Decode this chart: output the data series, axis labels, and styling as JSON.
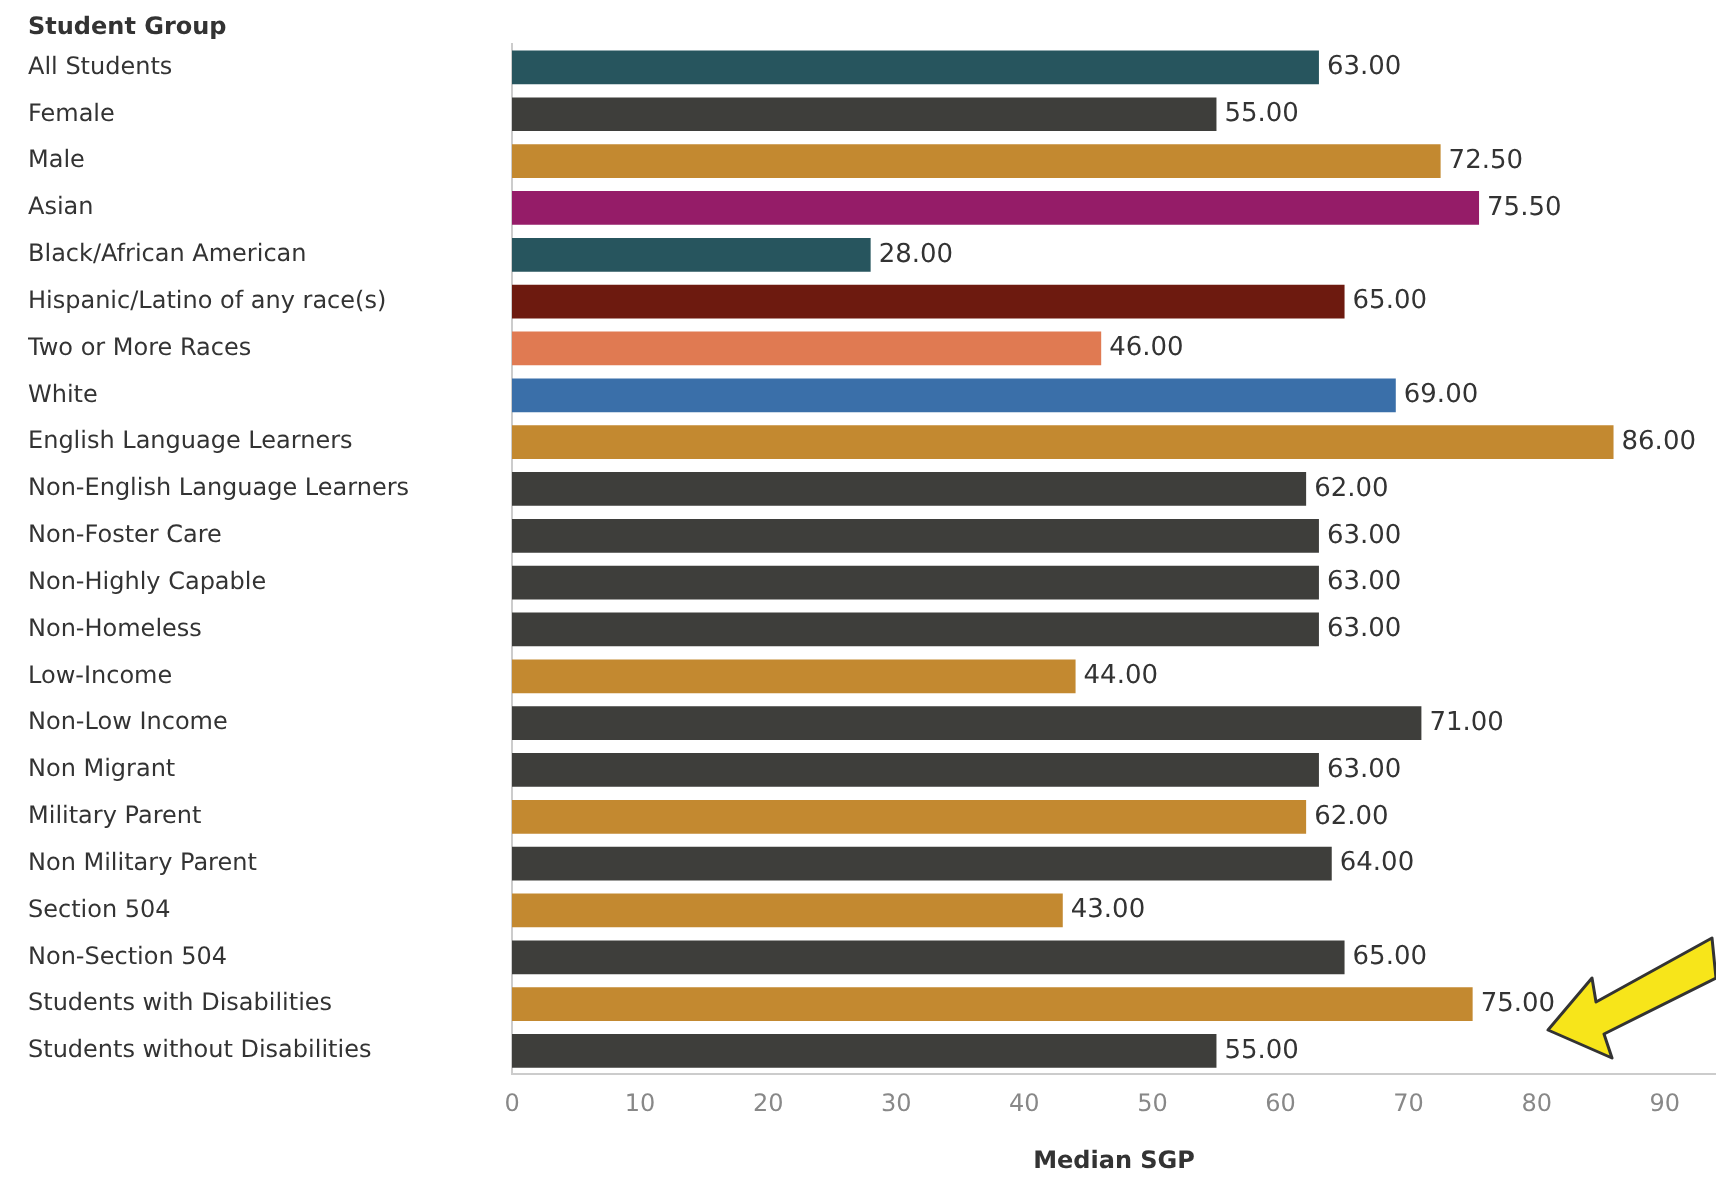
{
  "chart_data": {
    "type": "bar",
    "orientation": "horizontal",
    "ylabel": "Student Group",
    "xlabel": "Median SGP",
    "categories": [
      "All Students",
      "Female",
      "Male",
      "Asian",
      "Black/African American",
      "Hispanic/Latino of any race(s)",
      "Two or More Races",
      "White",
      "English Language Learners",
      "Non-English Language Learners",
      "Non-Foster Care",
      "Non-Highly Capable",
      "Non-Homeless",
      "Low-Income",
      "Non-Low Income",
      "Non Migrant",
      "Military Parent",
      "Non Military Parent",
      "Section 504",
      "Non-Section 504",
      "Students with Disabilities",
      "Students without Disabilities"
    ],
    "values": [
      63,
      55,
      72.5,
      75.5,
      28,
      65,
      46,
      69,
      86,
      62,
      63,
      63,
      63,
      44,
      71,
      63,
      62,
      64,
      43,
      65,
      75,
      55
    ],
    "value_labels": [
      "63.00",
      "55.00",
      "72.50",
      "75.50",
      "28.00",
      "65.00",
      "46.00",
      "69.00",
      "86.00",
      "62.00",
      "63.00",
      "63.00",
      "63.00",
      "44.00",
      "71.00",
      "63.00",
      "62.00",
      "64.00",
      "43.00",
      "65.00",
      "75.00",
      "55.00"
    ],
    "colors": [
      "#27555e",
      "#3e3e3b",
      "#c38930",
      "#951c68",
      "#27555e",
      "#6d1a0f",
      "#e07a52",
      "#3a6fa9",
      "#c38930",
      "#3e3e3b",
      "#3e3e3b",
      "#3e3e3b",
      "#3e3e3b",
      "#c38930",
      "#3e3e3b",
      "#3e3e3b",
      "#c38930",
      "#3e3e3b",
      "#c38930",
      "#3e3e3b",
      "#c38930",
      "#3e3e3b"
    ],
    "xlim": [
      0,
      94
    ],
    "xticks": [
      0,
      10,
      20,
      30,
      40,
      50,
      60,
      70,
      80,
      90
    ],
    "grid": false,
    "legend": false
  }
}
